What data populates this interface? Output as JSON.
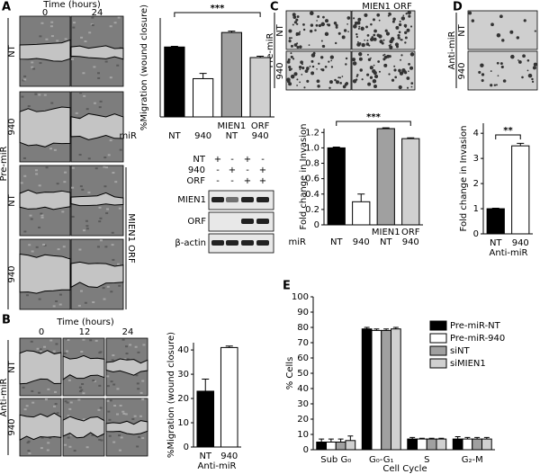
{
  "chart_data": [
    {
      "type": "bar",
      "y_label": "%Migration (wound closure)",
      "x_label": "miR",
      "categories": [
        "NT",
        "940",
        "NT",
        "940"
      ],
      "category_tops": [
        null,
        null,
        "MIEN1",
        "ORF"
      ],
      "values": [
        53,
        29,
        64,
        45
      ],
      "errors": [
        0.5,
        4,
        1,
        1
      ],
      "colors": [
        "#000000",
        "#ffffff",
        "#a0a0a0",
        "#d0d0d0"
      ],
      "ylim": [
        0,
        75
      ],
      "annotation": "***"
    },
    {
      "type": "bar",
      "y_label": "%Migration (wound closure)",
      "x_label": "Anti-miR",
      "categories": [
        "NT",
        "940"
      ],
      "values": [
        23,
        41
      ],
      "errors": [
        5,
        0.6
      ],
      "colors": [
        "#000000",
        "#ffffff"
      ],
      "ylim": [
        0,
        43
      ],
      "yticks": [
        0,
        10,
        20,
        30,
        40
      ]
    },
    {
      "type": "bar",
      "y_label": "Fold change in Invasion",
      "x_label": "miR",
      "categories": [
        "NT",
        "940",
        "NT",
        "940"
      ],
      "category_tops": [
        null,
        null,
        "MIEN1",
        "ORF"
      ],
      "values": [
        1.0,
        0.3,
        1.25,
        1.12
      ],
      "errors": [
        0.01,
        0.1,
        0.01,
        0.01
      ],
      "colors": [
        "#000000",
        "#ffffff",
        "#a0a0a0",
        "#d0d0d0"
      ],
      "ylim": [
        0,
        1.25
      ],
      "yticks": [
        0,
        0.2,
        0.4,
        0.6,
        0.8,
        {
          "value": 1,
          "label": "1.0"
        },
        1.2
      ],
      "annotation": "***"
    },
    {
      "type": "bar",
      "y_label": "Fold change in Invasion",
      "x_label": "Anti-miR",
      "categories": [
        "NT",
        "940"
      ],
      "values": [
        1.0,
        3.5
      ],
      "errors": [
        0.02,
        0.1
      ],
      "colors": [
        "#000000",
        "#ffffff"
      ],
      "ylim": [
        0,
        4.4
      ],
      "yticks": [
        0,
        1,
        2,
        3,
        4
      ],
      "annotation": "**"
    },
    {
      "type": "grouped_bar",
      "y_label": "% Cells",
      "x_label": "Cell Cycle",
      "categories": [
        "Sub G₀",
        "G₀-G₁",
        "S",
        "G₂-M"
      ],
      "series": [
        {
          "name": "Pre-miR-NT",
          "color": "#000000",
          "values": [
            5,
            79,
            7,
            7
          ],
          "errors": [
            2,
            1,
            1,
            1.5
          ]
        },
        {
          "name": "Pre-miR-940",
          "color": "#ffffff",
          "values": [
            5,
            78,
            7,
            7
          ],
          "errors": [
            2,
            1,
            0.5,
            1
          ]
        },
        {
          "name": "siNT",
          "color": "#a0a0a0",
          "values": [
            5,
            78,
            7,
            7
          ],
          "errors": [
            2,
            1,
            0.5,
            1
          ]
        },
        {
          "name": "siMIEN1",
          "color": "#d0d0d0",
          "values": [
            6,
            79,
            7,
            7
          ],
          "errors": [
            3,
            1,
            0.5,
            1
          ]
        }
      ],
      "ylim": [
        0,
        100
      ],
      "yticks": [
        0,
        10,
        20,
        30,
        40,
        50,
        60,
        70,
        80,
        90,
        100
      ]
    }
  ],
  "figure": {
    "panels": [
      "A",
      "B",
      "C",
      "D",
      "E"
    ],
    "a": {
      "time_label": "Time (hours)",
      "times": [
        "0",
        "24"
      ],
      "group": "Pre-miR",
      "rows": [
        "NT",
        "940",
        "NT",
        "940"
      ],
      "orf": "MIEN1 ORF"
    },
    "blot": {
      "rows": [
        {
          "label": "NT",
          "signs": [
            "+",
            "-",
            "+",
            "-"
          ]
        },
        {
          "label": "940",
          "signs": [
            "-",
            "+",
            "-",
            "+"
          ]
        },
        {
          "label": "ORF",
          "signs": [
            "-",
            "-",
            "+",
            "+"
          ]
        }
      ],
      "bands": [
        "MIEN1",
        "ORF",
        "β-actin"
      ]
    },
    "b": {
      "time_label": "Time (hours)",
      "times": [
        "0",
        "12",
        "24"
      ],
      "group": "Anti-miR",
      "rows": [
        "NT",
        "940"
      ]
    },
    "c": {
      "header": "MIEN1 ORF",
      "group": "Pre-miR",
      "rows": [
        "NT",
        "940"
      ]
    },
    "d": {
      "group": "Anti-miR",
      "rows": [
        "NT",
        "940"
      ]
    }
  }
}
